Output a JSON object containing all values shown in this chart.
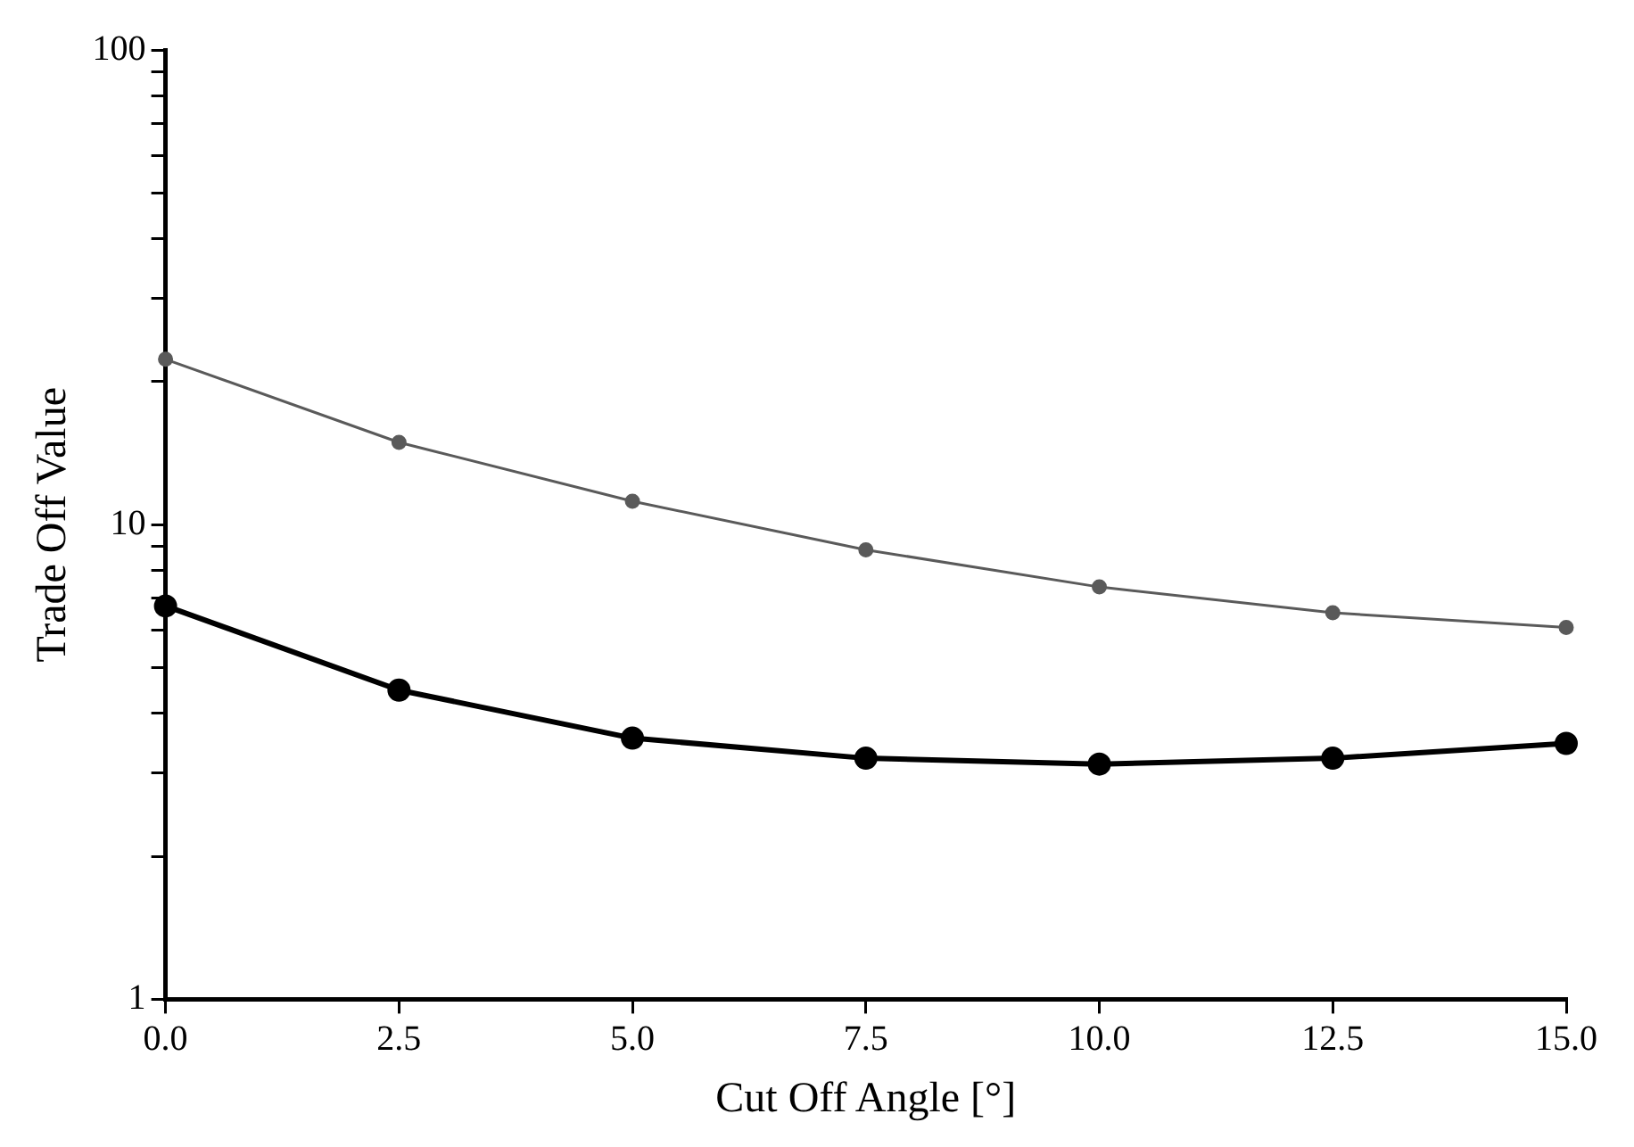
{
  "chart_data": {
    "type": "line",
    "xlabel": "Cut Off Angle [°]",
    "ylabel": "Trade Off Value",
    "x": [
      0,
      2.5,
      5,
      7.5,
      10,
      12.5,
      15
    ],
    "series": [
      {
        "color": "#5a5a5a",
        "values": [
          22.3,
          14.9,
          11.2,
          8.85,
          7.39,
          6.52,
          6.07
        ]
      },
      {
        "color": "#000000",
        "values": [
          6.74,
          4.48,
          3.55,
          3.22,
          3.13,
          3.22,
          3.46
        ]
      }
    ],
    "xlim": [
      0,
      15
    ],
    "xticks": [
      {
        "value": 0,
        "label": "0.0"
      },
      {
        "value": 2.5,
        "label": "2.5"
      },
      {
        "value": 5,
        "label": "5.0"
      },
      {
        "value": 7.5,
        "label": "7.5"
      },
      {
        "value": 10,
        "label": "10.0"
      },
      {
        "value": 12.5,
        "label": "12.5"
      },
      {
        "value": 15,
        "label": "15.0"
      }
    ],
    "ylim": [
      1,
      100
    ],
    "yticks": [
      1,
      {
        "value": 2,
        "label": null
      },
      {
        "value": 3,
        "label": null
      },
      {
        "value": 4,
        "label": null
      },
      {
        "value": 5,
        "label": null
      },
      {
        "value": 6,
        "label": null
      },
      {
        "value": 7,
        "label": null
      },
      {
        "value": 8,
        "label": null
      },
      {
        "value": 9,
        "label": null
      },
      10,
      {
        "value": 20,
        "label": null
      },
      {
        "value": 30,
        "label": null
      },
      {
        "value": 40,
        "label": null
      },
      {
        "value": 50,
        "label": null
      },
      {
        "value": 60,
        "label": null
      },
      {
        "value": 70,
        "label": null
      },
      {
        "value": 80,
        "label": null
      },
      {
        "value": 90,
        "label": null
      },
      100
    ],
    "log": true,
    "grid": false,
    "legend": false,
    "marker": "circle",
    "line_style": "solid"
  }
}
